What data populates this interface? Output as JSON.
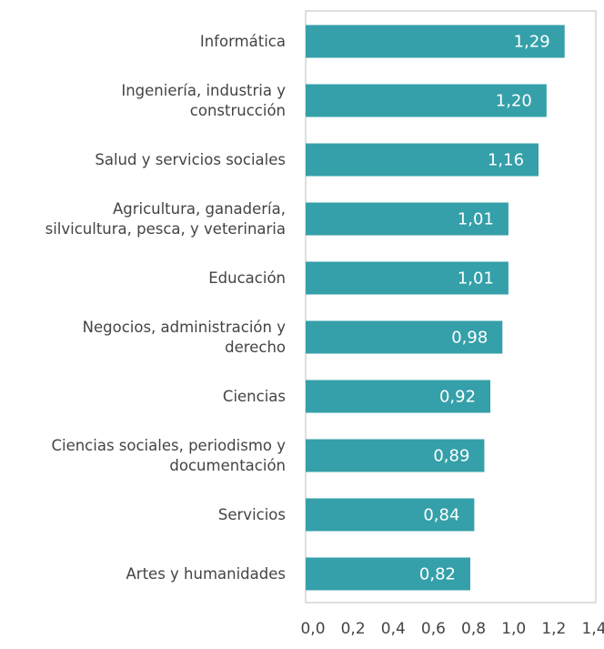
{
  "chart_data": {
    "type": "barh",
    "categories": [
      "Informática",
      "Ingeniería, industria y\nconstrucción",
      "Salud y servicios sociales",
      "Agricultura, ganadería,\nsilvicultura, pesca, y veterinaria",
      "Educación",
      "Negocios, administración y\nderecho",
      "Ciencias",
      "Ciencias sociales, periodismo y\ndocumentación",
      "Servicios",
      "Artes y humanidades"
    ],
    "values": [
      1.29,
      1.2,
      1.16,
      1.01,
      1.01,
      0.98,
      0.92,
      0.89,
      0.84,
      0.82
    ],
    "value_labels": [
      "1,29",
      "1,20",
      "1,16",
      "1,01",
      "1,01",
      "0,98",
      "0,92",
      "0,89",
      "0,84",
      "0,82"
    ],
    "color": "#35a0a9",
    "xlim": [
      0,
      1.4
    ],
    "xticks": [
      {
        "value": 0,
        "label": "0,0"
      },
      {
        "value": 0.2,
        "label": "0,2"
      },
      {
        "value": 0.4,
        "label": "0,4"
      },
      {
        "value": 0.6,
        "label": "0,6"
      },
      {
        "value": 0.8,
        "label": "0,8"
      },
      {
        "value": 1.0,
        "label": "1,0"
      },
      {
        "value": 1.2,
        "label": "1,2"
      },
      {
        "value": 1.4,
        "label": "1,4"
      }
    ]
  }
}
